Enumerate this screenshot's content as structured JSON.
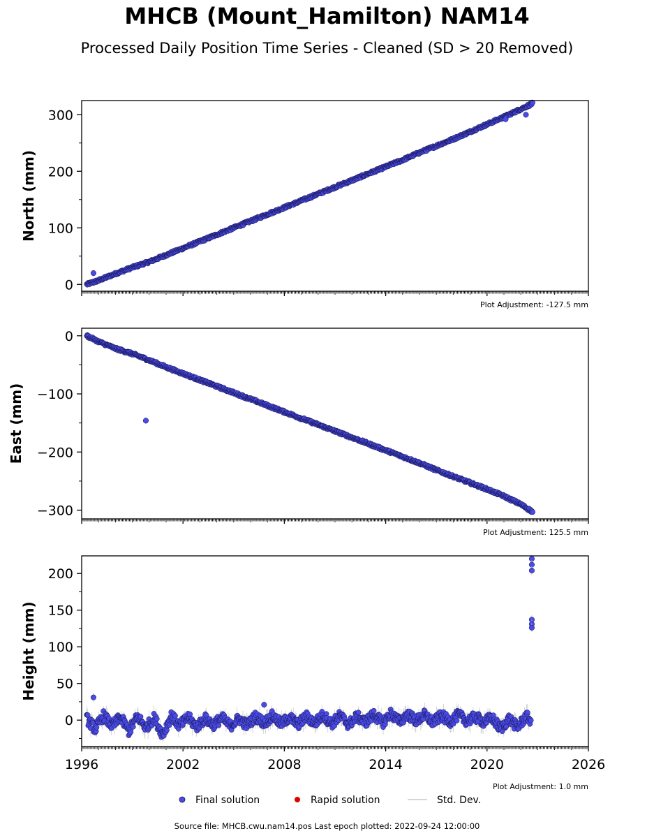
{
  "title": "MHCB (Mount_Hamilton) NAM14",
  "subtitle": "Processed Daily Position Time Series - Cleaned (SD > 20 Removed)",
  "footer": "Source file: MHCB.cwu.nam14.pos  Last epoch plotted: 2022-09-24 12:00:00",
  "colors": {
    "final": "#4a4ae6",
    "final_edge": "#14144a",
    "rapid": "#e00000",
    "stddev": "#c8c8c8"
  },
  "legend": [
    {
      "key": "final",
      "label": "Final solution"
    },
    {
      "key": "rapid",
      "label": "Rapid solution"
    },
    {
      "key": "stddev",
      "label": "Std. Dev."
    }
  ],
  "chart_data": [
    {
      "type": "scatter",
      "ylabel": "North (mm)",
      "adjustment": "Plot Adjustment: -127.5 mm",
      "xlim": [
        1996,
        2026
      ],
      "ylim": [
        -12,
        325
      ],
      "yticks": [
        0,
        100,
        200,
        300
      ],
      "ytick_labels": [
        "0",
        "100",
        "200",
        "300"
      ],
      "x_tick_labels_shown": false,
      "grid": false,
      "series": [
        {
          "key": "final",
          "x": [
            1996.3,
            1997.0,
            1998.0,
            1999.0,
            2000.0,
            2001.0,
            2002.0,
            2003.0,
            2004.0,
            2005.0,
            2006.0,
            2007.0,
            2008.0,
            2009.0,
            2010.0,
            2011.0,
            2012.0,
            2013.0,
            2014.0,
            2015.0,
            2016.0,
            2017.0,
            2018.0,
            2019.0,
            2020.0,
            2021.0,
            2022.0,
            2022.7
          ],
          "y": [
            0,
            7,
            19,
            30,
            40,
            52,
            64,
            76,
            88,
            100,
            112,
            124,
            136,
            148,
            160,
            172,
            184,
            196,
            208,
            220,
            233,
            245,
            257,
            270,
            283,
            296,
            310,
            320
          ],
          "outliers_x": [
            1996.7,
            2021.1,
            2022.3
          ],
          "outliers_y": [
            20,
            292,
            300
          ]
        },
        {
          "key": "rapid",
          "x": [],
          "y": []
        }
      ]
    },
    {
      "type": "scatter",
      "ylabel": "East (mm)",
      "adjustment": "Plot Adjustment: 125.5 mm",
      "xlim": [
        1996,
        2026
      ],
      "ylim": [
        -315,
        13
      ],
      "yticks": [
        0,
        -100,
        -200,
        -300
      ],
      "ytick_labels": [
        "0",
        "−100",
        "−200",
        "−300"
      ],
      "x_tick_labels_shown": false,
      "grid": false,
      "series": [
        {
          "key": "final",
          "x": [
            1996.3,
            1997.0,
            1998.0,
            1999.0,
            2000.0,
            2001.0,
            2002.0,
            2003.0,
            2004.0,
            2005.0,
            2006.0,
            2007.0,
            2008.0,
            2009.0,
            2010.0,
            2011.0,
            2012.0,
            2013.0,
            2014.0,
            2015.0,
            2016.0,
            2017.0,
            2018.0,
            2019.0,
            2020.0,
            2021.0,
            2022.0,
            2022.7
          ],
          "y": [
            0,
            -10,
            -22,
            -31,
            -42,
            -54,
            -65,
            -76,
            -87,
            -98,
            -109,
            -120,
            -131,
            -142,
            -153,
            -164,
            -175,
            -186,
            -197,
            -208,
            -219,
            -231,
            -242,
            -253,
            -264,
            -276,
            -290,
            -303
          ],
          "outliers_x": [
            1999.8
          ],
          "outliers_y": [
            -146
          ]
        },
        {
          "key": "rapid",
          "x": [],
          "y": []
        }
      ]
    },
    {
      "type": "scatter",
      "ylabel": "Height (mm)",
      "adjustment": "Plot Adjustment: 1.0 mm",
      "xlim": [
        1996,
        2026
      ],
      "ylim": [
        -36,
        224
      ],
      "yticks": [
        0,
        50,
        100,
        150,
        200
      ],
      "ytick_labels": [
        "0",
        "50",
        "100",
        "150",
        "200"
      ],
      "xticks": [
        1996,
        2002,
        2008,
        2014,
        2020,
        2026
      ],
      "xtick_labels": [
        "1996",
        "2002",
        "2008",
        "2014",
        "2020",
        "2026"
      ],
      "x_tick_labels_shown": true,
      "grid": false,
      "series": [
        {
          "key": "final",
          "x": [
            1996.3,
            1996.8,
            1997.3,
            1997.8,
            1998.3,
            1998.8,
            1999.3,
            1999.8,
            2000.3,
            2000.8,
            2001.3,
            2001.8,
            2002.3,
            2002.8,
            2003.3,
            2003.8,
            2004.3,
            2004.8,
            2005.3,
            2005.8,
            2006.3,
            2006.8,
            2007.3,
            2007.8,
            2008.3,
            2008.8,
            2009.3,
            2009.8,
            2010.3,
            2010.8,
            2011.3,
            2011.8,
            2012.3,
            2012.8,
            2013.3,
            2013.8,
            2014.3,
            2014.8,
            2015.3,
            2015.8,
            2016.3,
            2016.8,
            2017.3,
            2017.8,
            2018.3,
            2018.8,
            2019.3,
            2019.8,
            2020.3,
            2020.8,
            2021.3,
            2021.8,
            2022.3,
            2022.6
          ],
          "y": [
            2,
            -12,
            6,
            -8,
            4,
            -15,
            5,
            -10,
            3,
            -20,
            6,
            -8,
            4,
            -9,
            2,
            -6,
            3,
            -8,
            2,
            -7,
            5,
            -4,
            6,
            -5,
            4,
            -6,
            5,
            -4,
            7,
            -5,
            6,
            -6,
            5,
            -3,
            8,
            -4,
            9,
            -2,
            8,
            -1,
            7,
            -3,
            6,
            -2,
            7,
            -1,
            4,
            -2,
            3,
            -12,
            2,
            -10,
            5,
            0
          ],
          "outliers_x": [
            1996.7,
            2006.8,
            2022.65,
            2022.65,
            2022.65,
            2022.65,
            2022.65,
            2022.65
          ],
          "outliers_y": [
            31,
            21,
            220,
            212,
            204,
            137,
            131,
            126
          ]
        },
        {
          "key": "rapid",
          "x": [],
          "y": []
        }
      ]
    }
  ]
}
